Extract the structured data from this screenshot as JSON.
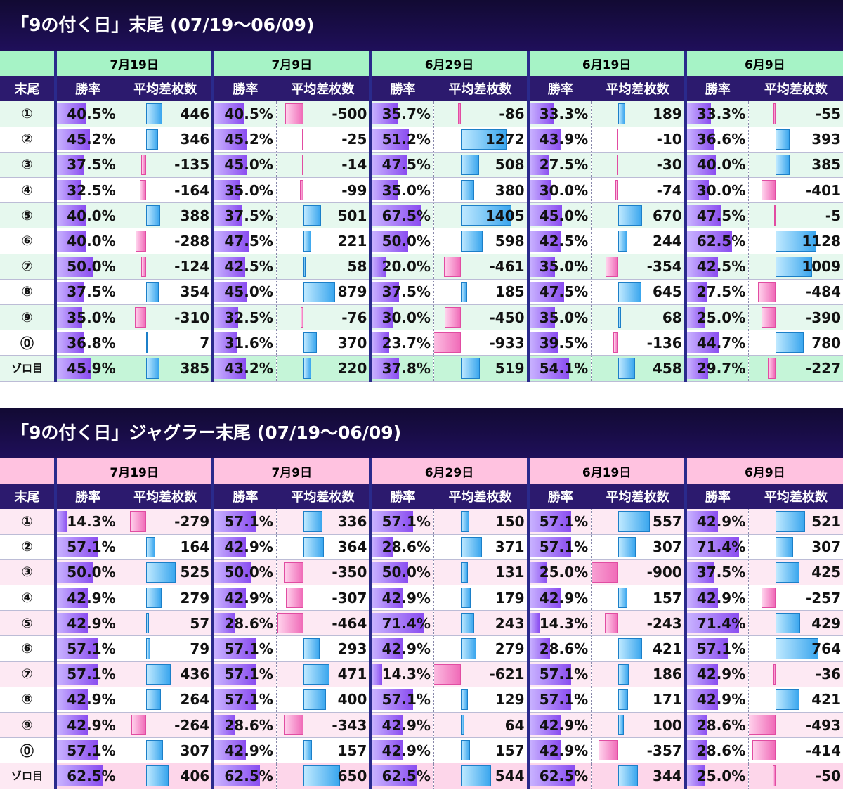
{
  "sections": [
    {
      "title": "「9の付く日」末尾 (07/19～06/09)",
      "theme": "theme1",
      "dates": [
        "7月19日",
        "7月9日",
        "6月29日",
        "6月19日",
        "6月9日"
      ],
      "label_header": "末尾",
      "rate_header": "勝率",
      "diff_header": "平均差枚数",
      "rows": [
        {
          "label": "①",
          "cells": [
            [
              "40.5%",
              446
            ],
            [
              "40.5%",
              -500
            ],
            [
              "35.7%",
              -86
            ],
            [
              "33.3%",
              189
            ],
            [
              "33.3%",
              -55
            ]
          ]
        },
        {
          "label": "②",
          "cells": [
            [
              "45.2%",
              346
            ],
            [
              "45.2%",
              -25
            ],
            [
              "51.2%",
              1272
            ],
            [
              "43.9%",
              -10
            ],
            [
              "36.6%",
              393
            ]
          ]
        },
        {
          "label": "③",
          "cells": [
            [
              "37.5%",
              -135
            ],
            [
              "45.0%",
              -14
            ],
            [
              "47.5%",
              508
            ],
            [
              "27.5%",
              -30
            ],
            [
              "40.0%",
              385
            ]
          ]
        },
        {
          "label": "④",
          "cells": [
            [
              "32.5%",
              -164
            ],
            [
              "35.0%",
              -99
            ],
            [
              "35.0%",
              380
            ],
            [
              "30.0%",
              -74
            ],
            [
              "30.0%",
              -401
            ]
          ]
        },
        {
          "label": "⑤",
          "cells": [
            [
              "40.0%",
              388
            ],
            [
              "37.5%",
              501
            ],
            [
              "67.5%",
              1405
            ],
            [
              "45.0%",
              670
            ],
            [
              "47.5%",
              -5
            ]
          ]
        },
        {
          "label": "⑥",
          "cells": [
            [
              "40.0%",
              -288
            ],
            [
              "47.5%",
              221
            ],
            [
              "50.0%",
              598
            ],
            [
              "42.5%",
              244
            ],
            [
              "62.5%",
              1128
            ]
          ]
        },
        {
          "label": "⑦",
          "cells": [
            [
              "50.0%",
              -124
            ],
            [
              "42.5%",
              58
            ],
            [
              "20.0%",
              -461
            ],
            [
              "35.0%",
              -354
            ],
            [
              "42.5%",
              1009
            ]
          ]
        },
        {
          "label": "⑧",
          "cells": [
            [
              "37.5%",
              354
            ],
            [
              "45.0%",
              879
            ],
            [
              "37.5%",
              185
            ],
            [
              "47.5%",
              645
            ],
            [
              "27.5%",
              -484
            ]
          ]
        },
        {
          "label": "⑨",
          "cells": [
            [
              "35.0%",
              -310
            ],
            [
              "32.5%",
              -76
            ],
            [
              "30.0%",
              -450
            ],
            [
              "35.0%",
              68
            ],
            [
              "25.0%",
              -390
            ]
          ]
        },
        {
          "label": "⓪",
          "cells": [
            [
              "36.8%",
              7
            ],
            [
              "31.6%",
              370
            ],
            [
              "23.7%",
              -933
            ],
            [
              "39.5%",
              -136
            ],
            [
              "44.7%",
              780
            ]
          ]
        },
        {
          "label": "ゾロ目",
          "cells": [
            [
              "45.9%",
              385
            ],
            [
              "43.2%",
              220
            ],
            [
              "37.8%",
              519
            ],
            [
              "54.1%",
              458
            ],
            [
              "29.7%",
              -227
            ]
          ]
        }
      ]
    },
    {
      "title": "「9の付く日」ジャグラー末尾 (07/19～06/09)",
      "theme": "theme2",
      "dates": [
        "7月19日",
        "7月9日",
        "6月29日",
        "6月19日",
        "6月9日"
      ],
      "label_header": "末尾",
      "rate_header": "勝率",
      "diff_header": "平均差枚数",
      "rows": [
        {
          "label": "①",
          "cells": [
            [
              "14.3%",
              -279
            ],
            [
              "57.1%",
              336
            ],
            [
              "57.1%",
              150
            ],
            [
              "57.1%",
              557
            ],
            [
              "42.9%",
              521
            ]
          ]
        },
        {
          "label": "②",
          "cells": [
            [
              "57.1%",
              164
            ],
            [
              "42.9%",
              364
            ],
            [
              "28.6%",
              371
            ],
            [
              "57.1%",
              307
            ],
            [
              "71.4%",
              307
            ]
          ]
        },
        {
          "label": "③",
          "cells": [
            [
              "50.0%",
              525
            ],
            [
              "50.0%",
              -350
            ],
            [
              "50.0%",
              131
            ],
            [
              "25.0%",
              -900
            ],
            [
              "37.5%",
              425
            ]
          ]
        },
        {
          "label": "④",
          "cells": [
            [
              "42.9%",
              279
            ],
            [
              "42.9%",
              -307
            ],
            [
              "42.9%",
              179
            ],
            [
              "42.9%",
              157
            ],
            [
              "42.9%",
              -257
            ]
          ]
        },
        {
          "label": "⑤",
          "cells": [
            [
              "42.9%",
              57
            ],
            [
              "28.6%",
              -464
            ],
            [
              "71.4%",
              243
            ],
            [
              "14.3%",
              -243
            ],
            [
              "71.4%",
              429
            ]
          ]
        },
        {
          "label": "⑥",
          "cells": [
            [
              "57.1%",
              79
            ],
            [
              "57.1%",
              293
            ],
            [
              "42.9%",
              279
            ],
            [
              "28.6%",
              421
            ],
            [
              "57.1%",
              764
            ]
          ]
        },
        {
          "label": "⑦",
          "cells": [
            [
              "57.1%",
              436
            ],
            [
              "57.1%",
              471
            ],
            [
              "14.3%",
              -621
            ],
            [
              "57.1%",
              186
            ],
            [
              "42.9%",
              -36
            ]
          ]
        },
        {
          "label": "⑧",
          "cells": [
            [
              "42.9%",
              264
            ],
            [
              "57.1%",
              400
            ],
            [
              "57.1%",
              129
            ],
            [
              "57.1%",
              171
            ],
            [
              "42.9%",
              421
            ]
          ]
        },
        {
          "label": "⑨",
          "cells": [
            [
              "42.9%",
              -264
            ],
            [
              "28.6%",
              -343
            ],
            [
              "42.9%",
              64
            ],
            [
              "42.9%",
              100
            ],
            [
              "28.6%",
              -493
            ]
          ]
        },
        {
          "label": "⓪",
          "cells": [
            [
              "57.1%",
              307
            ],
            [
              "42.9%",
              157
            ],
            [
              "42.9%",
              157
            ],
            [
              "42.9%",
              -357
            ],
            [
              "28.6%",
              -414
            ]
          ]
        },
        {
          "label": "ゾロ目",
          "cells": [
            [
              "62.5%",
              406
            ],
            [
              "62.5%",
              650
            ],
            [
              "62.5%",
              544
            ],
            [
              "62.5%",
              344
            ],
            [
              "25.0%",
              -50
            ]
          ]
        }
      ]
    }
  ]
}
